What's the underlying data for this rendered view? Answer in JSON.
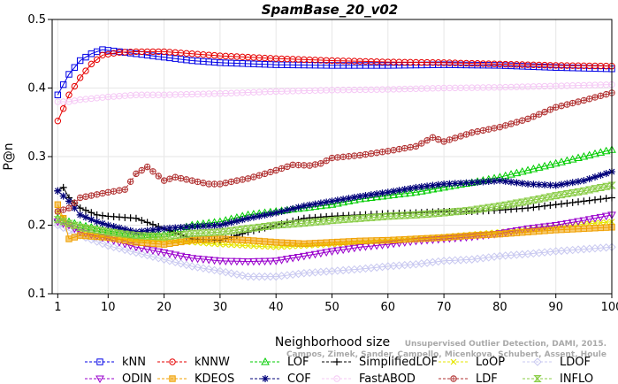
{
  "chart_data": {
    "type": "line",
    "title": "SpamBase_20_v02",
    "xlabel": "Neighborhood size",
    "ylabel": "P@n",
    "xlim": [
      0,
      100
    ],
    "ylim": [
      0.1,
      0.5
    ],
    "xticks": [
      1,
      10,
      20,
      30,
      40,
      50,
      60,
      70,
      80,
      90,
      100
    ],
    "yticks": [
      0.1,
      0.2,
      0.3,
      0.4,
      0.5
    ],
    "xtick_labels": [
      "1",
      "10",
      "20",
      "30",
      "40",
      "50",
      "60",
      "70",
      "80",
      "90",
      "100"
    ],
    "ytick_labels": [
      "0.1",
      "0.2",
      "0.3",
      "0.4",
      "0.5"
    ],
    "legend_placement": "bottom",
    "credit_lines": [
      "Unsupervised Outlier Detection, DAMI, 2015.",
      "Campos, Zimek, Sander, Campello, Micenkova, Schubert, Assent, Houle"
    ],
    "series": [
      {
        "name": "kNN",
        "color": "#0000e6",
        "marker": "square",
        "dashed": false,
        "points": [
          [
            1,
            0.39
          ],
          [
            2,
            0.405
          ],
          [
            3,
            0.42
          ],
          [
            5,
            0.44
          ],
          [
            7,
            0.45
          ],
          [
            9,
            0.456
          ],
          [
            10,
            0.455
          ],
          [
            15,
            0.45
          ],
          [
            20,
            0.445
          ],
          [
            25,
            0.44
          ],
          [
            30,
            0.437
          ],
          [
            40,
            0.434
          ],
          [
            50,
            0.433
          ],
          [
            60,
            0.433
          ],
          [
            70,
            0.434
          ],
          [
            80,
            0.433
          ],
          [
            90,
            0.43
          ],
          [
            100,
            0.428
          ]
        ]
      },
      {
        "name": "kNNW",
        "color": "#e60000",
        "marker": "circle",
        "dashed": false,
        "points": [
          [
            1,
            0.352
          ],
          [
            2,
            0.37
          ],
          [
            3,
            0.39
          ],
          [
            5,
            0.415
          ],
          [
            7,
            0.435
          ],
          [
            9,
            0.448
          ],
          [
            12,
            0.452
          ],
          [
            15,
            0.453
          ],
          [
            20,
            0.453
          ],
          [
            25,
            0.45
          ],
          [
            30,
            0.447
          ],
          [
            40,
            0.443
          ],
          [
            50,
            0.44
          ],
          [
            60,
            0.438
          ],
          [
            70,
            0.437
          ],
          [
            80,
            0.435
          ],
          [
            90,
            0.433
          ],
          [
            100,
            0.432
          ]
        ]
      },
      {
        "name": "LOF",
        "color": "#00cc00",
        "marker": "triangle-up",
        "dashed": false,
        "points": [
          [
            1,
            0.21
          ],
          [
            5,
            0.2
          ],
          [
            10,
            0.192
          ],
          [
            15,
            0.185
          ],
          [
            20,
            0.187
          ],
          [
            25,
            0.2
          ],
          [
            30,
            0.205
          ],
          [
            35,
            0.215
          ],
          [
            40,
            0.22
          ],
          [
            45,
            0.225
          ],
          [
            50,
            0.23
          ],
          [
            55,
            0.238
          ],
          [
            60,
            0.243
          ],
          [
            65,
            0.248
          ],
          [
            70,
            0.255
          ],
          [
            75,
            0.262
          ],
          [
            80,
            0.27
          ],
          [
            85,
            0.28
          ],
          [
            90,
            0.29
          ],
          [
            95,
            0.3
          ],
          [
            100,
            0.31
          ]
        ]
      },
      {
        "name": "SimplifiedLOF",
        "color": "#000000",
        "marker": "plus",
        "dashed": false,
        "points": [
          [
            1,
            0.25
          ],
          [
            2,
            0.255
          ],
          [
            3,
            0.24
          ],
          [
            5,
            0.225
          ],
          [
            8,
            0.215
          ],
          [
            10,
            0.213
          ],
          [
            15,
            0.21
          ],
          [
            20,
            0.195
          ],
          [
            25,
            0.18
          ],
          [
            30,
            0.178
          ],
          [
            35,
            0.19
          ],
          [
            40,
            0.2
          ],
          [
            45,
            0.21
          ],
          [
            50,
            0.213
          ],
          [
            55,
            0.215
          ],
          [
            60,
            0.217
          ],
          [
            65,
            0.218
          ],
          [
            70,
            0.22
          ],
          [
            75,
            0.22
          ],
          [
            80,
            0.222
          ],
          [
            85,
            0.225
          ],
          [
            90,
            0.23
          ],
          [
            95,
            0.235
          ],
          [
            100,
            0.24
          ]
        ]
      },
      {
        "name": "LoOP",
        "color": "#e6e600",
        "marker": "x",
        "dashed": false,
        "points": [
          [
            1,
            0.22
          ],
          [
            3,
            0.2
          ],
          [
            5,
            0.19
          ],
          [
            10,
            0.182
          ],
          [
            15,
            0.178
          ],
          [
            20,
            0.178
          ],
          [
            25,
            0.175
          ],
          [
            30,
            0.172
          ],
          [
            40,
            0.168
          ],
          [
            50,
            0.172
          ],
          [
            60,
            0.177
          ],
          [
            70,
            0.183
          ],
          [
            80,
            0.19
          ],
          [
            90,
            0.198
          ],
          [
            100,
            0.205
          ]
        ]
      },
      {
        "name": "LDOF",
        "color": "#c8c8f0",
        "marker": "diamond",
        "dashed": false,
        "points": [
          [
            1,
            0.2
          ],
          [
            5,
            0.185
          ],
          [
            10,
            0.17
          ],
          [
            15,
            0.16
          ],
          [
            20,
            0.15
          ],
          [
            25,
            0.14
          ],
          [
            30,
            0.133
          ],
          [
            35,
            0.125
          ],
          [
            40,
            0.125
          ],
          [
            45,
            0.13
          ],
          [
            50,
            0.133
          ],
          [
            55,
            0.136
          ],
          [
            60,
            0.14
          ],
          [
            65,
            0.143
          ],
          [
            70,
            0.148
          ],
          [
            75,
            0.15
          ],
          [
            80,
            0.155
          ],
          [
            85,
            0.158
          ],
          [
            90,
            0.162
          ],
          [
            95,
            0.165
          ],
          [
            100,
            0.168
          ]
        ]
      },
      {
        "name": "ODIN",
        "color": "#9900cc",
        "marker": "triangle-down",
        "dashed": false,
        "points": [
          [
            1,
            0.205
          ],
          [
            3,
            0.2
          ],
          [
            5,
            0.19
          ],
          [
            10,
            0.18
          ],
          [
            15,
            0.168
          ],
          [
            20,
            0.16
          ],
          [
            25,
            0.152
          ],
          [
            30,
            0.148
          ],
          [
            35,
            0.147
          ],
          [
            40,
            0.148
          ],
          [
            45,
            0.155
          ],
          [
            50,
            0.162
          ],
          [
            55,
            0.168
          ],
          [
            60,
            0.172
          ],
          [
            65,
            0.177
          ],
          [
            70,
            0.18
          ],
          [
            75,
            0.183
          ],
          [
            80,
            0.188
          ],
          [
            85,
            0.195
          ],
          [
            90,
            0.2
          ],
          [
            95,
            0.207
          ],
          [
            100,
            0.215
          ]
        ]
      },
      {
        "name": "KDEOS",
        "color": "#f0a000",
        "marker": "square-filled",
        "dashed": false,
        "points": [
          [
            1,
            0.23
          ],
          [
            2,
            0.21
          ],
          [
            3,
            0.18
          ],
          [
            5,
            0.185
          ],
          [
            10,
            0.182
          ],
          [
            15,
            0.175
          ],
          [
            20,
            0.172
          ],
          [
            25,
            0.178
          ],
          [
            30,
            0.18
          ],
          [
            35,
            0.178
          ],
          [
            40,
            0.175
          ],
          [
            45,
            0.173
          ],
          [
            50,
            0.175
          ],
          [
            55,
            0.177
          ],
          [
            60,
            0.178
          ],
          [
            65,
            0.18
          ],
          [
            70,
            0.182
          ],
          [
            75,
            0.185
          ],
          [
            80,
            0.187
          ],
          [
            85,
            0.19
          ],
          [
            90,
            0.193
          ],
          [
            95,
            0.195
          ],
          [
            100,
            0.197
          ]
        ]
      },
      {
        "name": "COF",
        "color": "#00007a",
        "marker": "star",
        "dashed": false,
        "points": [
          [
            1,
            0.25
          ],
          [
            3,
            0.235
          ],
          [
            5,
            0.215
          ],
          [
            8,
            0.205
          ],
          [
            10,
            0.2
          ],
          [
            15,
            0.19
          ],
          [
            20,
            0.195
          ],
          [
            25,
            0.198
          ],
          [
            30,
            0.2
          ],
          [
            35,
            0.21
          ],
          [
            40,
            0.218
          ],
          [
            45,
            0.228
          ],
          [
            50,
            0.235
          ],
          [
            55,
            0.242
          ],
          [
            60,
            0.248
          ],
          [
            65,
            0.255
          ],
          [
            70,
            0.26
          ],
          [
            75,
            0.262
          ],
          [
            80,
            0.265
          ],
          [
            85,
            0.26
          ],
          [
            90,
            0.258
          ],
          [
            95,
            0.265
          ],
          [
            100,
            0.278
          ]
        ]
      },
      {
        "name": "FastABOD",
        "color": "#f5c8f5",
        "marker": "circle-open-light",
        "dashed": false,
        "points": [
          [
            1,
            0.38
          ],
          [
            3,
            0.38
          ],
          [
            5,
            0.383
          ],
          [
            10,
            0.387
          ],
          [
            15,
            0.39
          ],
          [
            20,
            0.39
          ],
          [
            30,
            0.392
          ],
          [
            40,
            0.395
          ],
          [
            50,
            0.397
          ],
          [
            60,
            0.398
          ],
          [
            70,
            0.4
          ],
          [
            80,
            0.401
          ],
          [
            90,
            0.403
          ],
          [
            100,
            0.405
          ]
        ]
      },
      {
        "name": "LDF",
        "color": "#b03030",
        "marker": "circle-cross",
        "dashed": true,
        "points": [
          [
            1,
            0.22
          ],
          [
            3,
            0.225
          ],
          [
            5,
            0.24
          ],
          [
            10,
            0.248
          ],
          [
            13,
            0.252
          ],
          [
            15,
            0.275
          ],
          [
            17,
            0.285
          ],
          [
            20,
            0.265
          ],
          [
            22,
            0.27
          ],
          [
            25,
            0.265
          ],
          [
            28,
            0.26
          ],
          [
            30,
            0.26
          ],
          [
            33,
            0.265
          ],
          [
            35,
            0.268
          ],
          [
            38,
            0.275
          ],
          [
            40,
            0.28
          ],
          [
            43,
            0.288
          ],
          [
            46,
            0.287
          ],
          [
            48,
            0.29
          ],
          [
            50,
            0.298
          ],
          [
            55,
            0.302
          ],
          [
            60,
            0.308
          ],
          [
            65,
            0.315
          ],
          [
            68,
            0.328
          ],
          [
            70,
            0.322
          ],
          [
            75,
            0.335
          ],
          [
            80,
            0.343
          ],
          [
            85,
            0.355
          ],
          [
            88,
            0.365
          ],
          [
            90,
            0.372
          ],
          [
            95,
            0.382
          ],
          [
            100,
            0.393
          ]
        ]
      },
      {
        "name": "INFLO",
        "color": "#88cc44",
        "marker": "hourglass",
        "dashed": false,
        "points": [
          [
            1,
            0.208
          ],
          [
            5,
            0.197
          ],
          [
            10,
            0.19
          ],
          [
            15,
            0.185
          ],
          [
            20,
            0.183
          ],
          [
            25,
            0.188
          ],
          [
            30,
            0.19
          ],
          [
            35,
            0.195
          ],
          [
            40,
            0.2
          ],
          [
            45,
            0.203
          ],
          [
            50,
            0.207
          ],
          [
            55,
            0.21
          ],
          [
            60,
            0.213
          ],
          [
            65,
            0.215
          ],
          [
            70,
            0.218
          ],
          [
            75,
            0.222
          ],
          [
            80,
            0.228
          ],
          [
            85,
            0.235
          ],
          [
            90,
            0.243
          ],
          [
            95,
            0.25
          ],
          [
            100,
            0.258
          ]
        ]
      }
    ]
  }
}
